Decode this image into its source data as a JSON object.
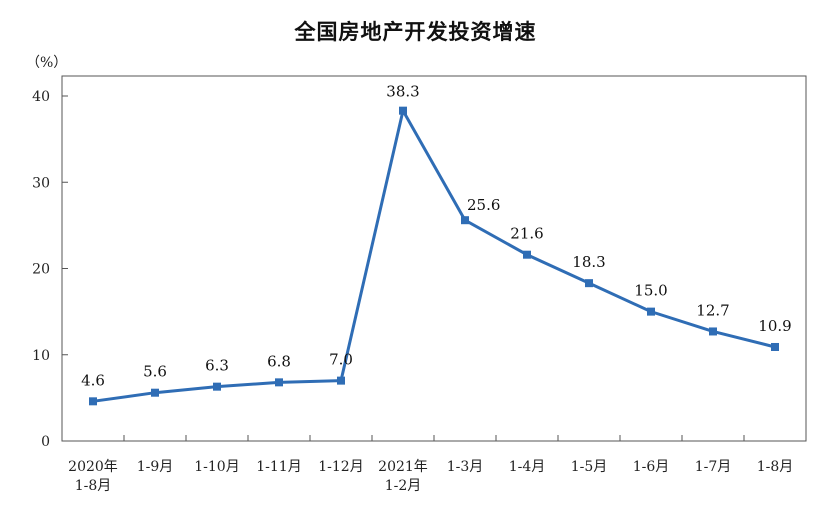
{
  "chart_data": {
    "type": "line",
    "title": "全国房地产开发投资增速",
    "ylabel": "（%）",
    "ylim": [
      0,
      40
    ],
    "yticks": [
      0,
      10,
      20,
      30,
      40
    ],
    "categories": [
      [
        "2020年",
        "1-8月"
      ],
      [
        "1-9月"
      ],
      [
        "1-10月"
      ],
      [
        "1-11月"
      ],
      [
        "1-12月"
      ],
      [
        "2021年",
        "1-2月"
      ],
      [
        "1-3月"
      ],
      [
        "1-4月"
      ],
      [
        "1-5月"
      ],
      [
        "1-6月"
      ],
      [
        "1-7月"
      ],
      [
        "1-8月"
      ]
    ],
    "series": [
      {
        "values": [
          4.6,
          5.6,
          6.3,
          6.8,
          7.0,
          38.3,
          25.6,
          21.6,
          18.3,
          15.0,
          12.7,
          10.9
        ],
        "labels": [
          "4.6",
          "5.6",
          "6.3",
          "6.8",
          "7.0",
          "38.3",
          "25.6",
          "21.6",
          "18.3",
          "15.0",
          "12.7",
          "10.9"
        ]
      }
    ],
    "line_color": "#2f6db5",
    "grid": false,
    "legend": "none"
  }
}
